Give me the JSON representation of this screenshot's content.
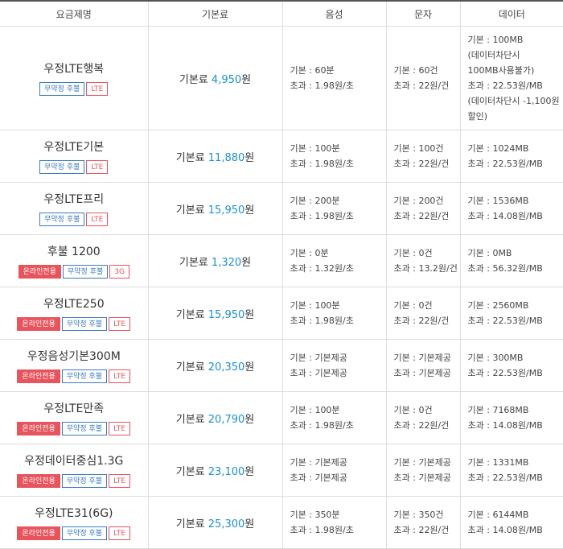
{
  "headers": [
    "요금제명",
    "기본료",
    "음성",
    "문자",
    "데이터"
  ],
  "fee_label": "기본료",
  "currency_suffix": "원",
  "tag_labels": {
    "online": "온라인전용",
    "plan": "무약정 후불"
  },
  "accent_colors": {
    "fee": "#1c8fd0",
    "online_tag": "#e8545d",
    "plan_tag": "#3a7ac0",
    "network_tag": "#e8545d"
  },
  "plans": [
    {
      "name": "우정LTE행복",
      "online": false,
      "network": "LTE",
      "fee": "4,950",
      "voice": [
        "기본 : 60분",
        "초과 : 1.98원/초"
      ],
      "sms": [
        "기본 : 60건",
        "초과 : 22원/건"
      ],
      "data": [
        "기본 : 100MB",
        "(데이터차단시",
        "100MB사용불가)",
        "초과 : 22.53원/MB",
        "(데이터차단시 -1,100원",
        "할인)"
      ]
    },
    {
      "name": "우정LTE기본",
      "online": false,
      "network": "LTE",
      "fee": "11,880",
      "voice": [
        "기본 : 100분",
        "초과 : 1.98원/초"
      ],
      "sms": [
        "기본 : 100건",
        "초과 : 22원/건"
      ],
      "data": [
        "기본 : 1024MB",
        "초과 : 22.53원/MB"
      ]
    },
    {
      "name": "우정LTE프리",
      "online": false,
      "network": "LTE",
      "fee": "15,950",
      "voice": [
        "기본 : 200분",
        "초과 : 1.98원/초"
      ],
      "sms": [
        "기본 : 200건",
        "초과 : 22원/건"
      ],
      "data": [
        "기본 : 1536MB",
        "초과 : 14.08원/MB"
      ]
    },
    {
      "name": "후불 1200",
      "online": true,
      "network": "3G",
      "fee": "1,320",
      "voice": [
        "기본 : 0분",
        "초과 : 1.32원/초"
      ],
      "sms": [
        "기본 : 0건",
        "초과 : 13.2원/건"
      ],
      "data": [
        "기본 : 0MB",
        "초과 : 56.32원/MB"
      ]
    },
    {
      "name": "우정LTE250",
      "online": true,
      "network": "LTE",
      "fee": "15,950",
      "voice": [
        "기본 : 100분",
        "초과 : 1.98원/초"
      ],
      "sms": [
        "기본 : 0건",
        "초과 : 22원/건"
      ],
      "data": [
        "기본 : 2560MB",
        "초과 : 22.53원/MB"
      ]
    },
    {
      "name": "우정음성기본300M",
      "online": true,
      "network": "LTE",
      "fee": "20,350",
      "voice": [
        "기본 : 기본제공",
        "초과 : 기본제공"
      ],
      "sms": [
        "기본 : 기본제공",
        "초과 : 기본제공"
      ],
      "data": [
        "기본 : 300MB",
        "초과 : 22.53원/MB"
      ]
    },
    {
      "name": "우정LTE만족",
      "online": true,
      "network": "LTE",
      "fee": "20,790",
      "voice": [
        "기본 : 100분",
        "초과 : 1.98원/초"
      ],
      "sms": [
        "기본 : 0건",
        "초과 : 22원/건"
      ],
      "data": [
        "기본 : 7168MB",
        "초과 : 14.08원/MB"
      ]
    },
    {
      "name": "우정데이터중심1.3G",
      "online": true,
      "network": "LTE",
      "fee": "23,100",
      "voice": [
        "기본 : 기본제공",
        "초과 : 기본제공"
      ],
      "sms": [
        "기본 : 기본제공",
        "초과 : 기본제공"
      ],
      "data": [
        "기본 : 1331MB",
        "초과 : 22.53원/MB"
      ]
    },
    {
      "name": "우정LTE31(6G)",
      "online": true,
      "network": "LTE",
      "fee": "25,300",
      "voice": [
        "기본 : 350분",
        "초과 : 1.98원/초"
      ],
      "sms": [
        "기본 : 350건",
        "초과 : 22원/건"
      ],
      "data": [
        "기본 : 6144MB",
        "초과 : 14.08원/MB"
      ]
    }
  ]
}
